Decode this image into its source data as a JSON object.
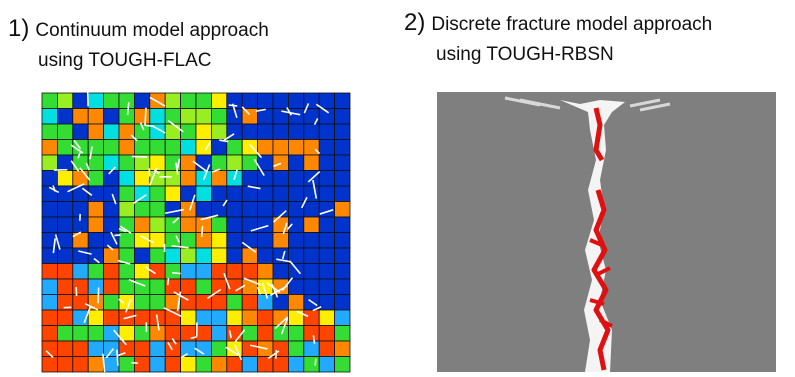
{
  "panels": [
    {
      "number": "1)",
      "line1": "Continuum model approach",
      "line2": "using TOUGH-FLAC"
    },
    {
      "number": "2)",
      "line1": "Discrete fracture model approach",
      "line2": "using TOUGH-RBSN"
    }
  ]
}
